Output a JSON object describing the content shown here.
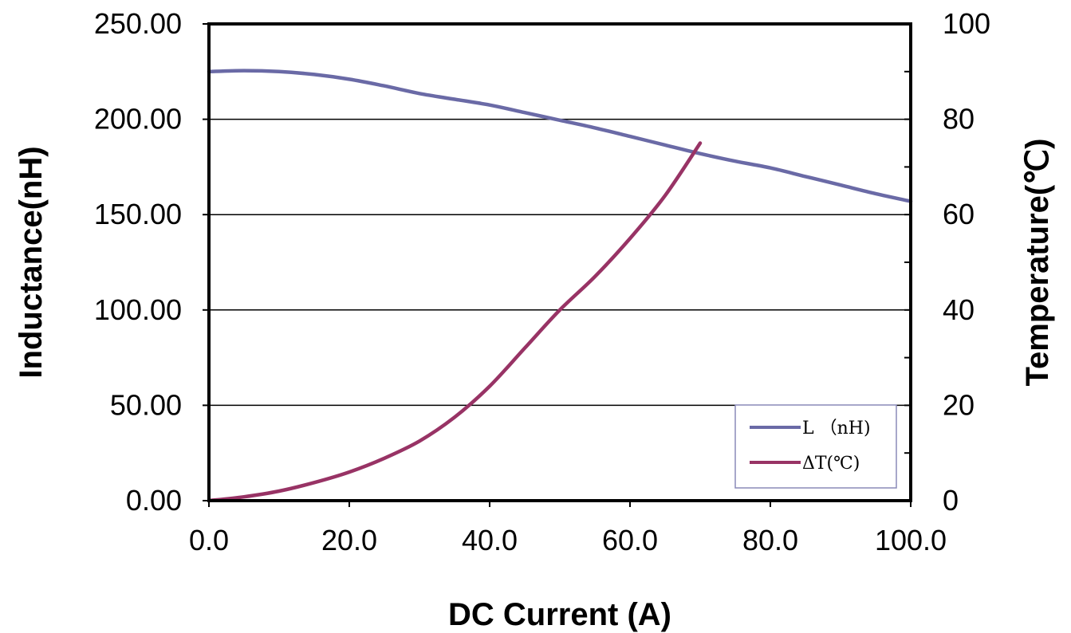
{
  "chart_data": {
    "type": "line",
    "xlabel": "DC Current (A)",
    "ylabel": "Inductance(nH)",
    "y2label": "Temperature(℃)",
    "xlim": [
      0,
      100
    ],
    "ylim": [
      0,
      250
    ],
    "y2lim": [
      0,
      100
    ],
    "x_ticks": [
      "0.0",
      "20.0",
      "40.0",
      "60.0",
      "80.0",
      "100.0"
    ],
    "y_ticks": [
      "0.00",
      "50.00",
      "100.00",
      "150.00",
      "200.00",
      "250.00"
    ],
    "y2_ticks": [
      "0",
      "20",
      "40",
      "60",
      "80",
      "100"
    ],
    "grid": "horizontal",
    "legend_position": "bottom-right",
    "series": [
      {
        "name": "L （nH)",
        "axis": "left",
        "color": "#6a6aa6",
        "x": [
          0,
          5,
          10,
          15,
          20,
          25,
          30,
          35,
          40,
          45,
          50,
          55,
          60,
          65,
          70,
          75,
          80,
          85,
          90,
          95,
          100
        ],
        "y": [
          225,
          225.5,
          225,
          223.5,
          221,
          217.5,
          213.5,
          210.5,
          207.5,
          203.5,
          199.5,
          195.5,
          191,
          186.5,
          182,
          178,
          174.5,
          170,
          165.5,
          161,
          157
        ]
      },
      {
        "name": "ΔT(℃)",
        "axis": "right",
        "color": "#983365",
        "x": [
          0,
          5,
          10,
          15,
          20,
          25,
          30,
          35,
          40,
          45,
          50,
          55,
          60,
          65,
          70
        ],
        "y": [
          0,
          0.8,
          2,
          3.8,
          6,
          8.9,
          12.5,
          17.5,
          24,
          32,
          40,
          47,
          55,
          64,
          75
        ]
      }
    ]
  }
}
